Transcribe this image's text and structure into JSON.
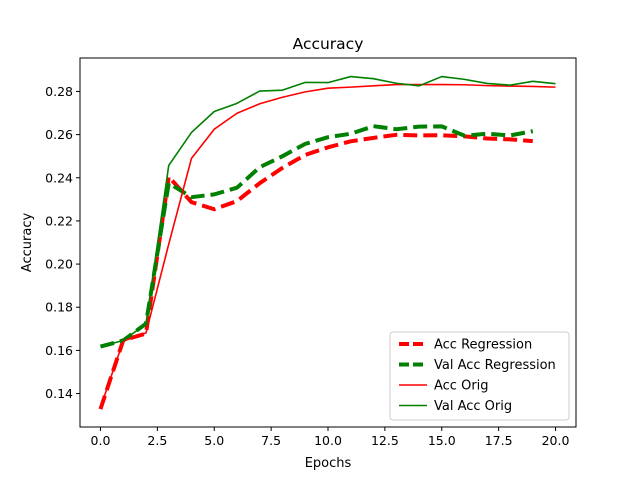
{
  "chart_data": {
    "type": "line",
    "title": "Accuracy",
    "xlabel": "Epochs",
    "ylabel": "Accuracy",
    "xlim": [
      -0.9,
      20.9
    ],
    "ylim": [
      0.1245,
      0.2955
    ],
    "x_ticks": [
      0.0,
      2.5,
      5.0,
      7.5,
      10.0,
      12.5,
      15.0,
      17.5,
      20.0
    ],
    "x_tick_labels": [
      "0.0",
      "2.5",
      "5.0",
      "7.5",
      "10.0",
      "12.5",
      "15.0",
      "17.5",
      "20.0"
    ],
    "y_ticks": [
      0.14,
      0.16,
      0.18,
      0.2,
      0.22,
      0.24,
      0.26,
      0.28
    ],
    "y_tick_labels": [
      "0.14",
      "0.16",
      "0.18",
      "0.20",
      "0.22",
      "0.24",
      "0.26",
      "0.28"
    ],
    "grid": false,
    "legend_position": "lower-right",
    "series": [
      {
        "name": "Acc Regression",
        "color": "#ff0000",
        "style": "dashed",
        "width": 4,
        "x": [
          0,
          1,
          2,
          3,
          4,
          5,
          6,
          7,
          8,
          9,
          10,
          11,
          12,
          13,
          14,
          15,
          16,
          17,
          18,
          19
        ],
        "y": [
          0.1328,
          0.1647,
          0.1678,
          0.2405,
          0.2287,
          0.2254,
          0.2292,
          0.2375,
          0.2446,
          0.2506,
          0.2541,
          0.2569,
          0.2585,
          0.2599,
          0.2596,
          0.2597,
          0.2592,
          0.2582,
          0.2578,
          0.257
        ]
      },
      {
        "name": "Val Acc Regression",
        "color": "#008000",
        "style": "dashed",
        "width": 4,
        "x": [
          0,
          1,
          2,
          3,
          4,
          5,
          6,
          7,
          8,
          9,
          10,
          11,
          12,
          13,
          14,
          15,
          16,
          17,
          18,
          19
        ],
        "y": [
          0.1618,
          0.1646,
          0.1724,
          0.2375,
          0.231,
          0.2323,
          0.2354,
          0.2449,
          0.25,
          0.2557,
          0.2588,
          0.2604,
          0.2639,
          0.2625,
          0.2637,
          0.2638,
          0.2595,
          0.2604,
          0.2596,
          0.2616
        ]
      },
      {
        "name": "Acc Orig",
        "color": "#ff0000",
        "style": "solid",
        "width": 1.6,
        "x": [
          0,
          1,
          2,
          3,
          4,
          5,
          6,
          7,
          8,
          9,
          10,
          11,
          12,
          13,
          14,
          15,
          16,
          17,
          18,
          19,
          20
        ],
        "y": [
          0.1335,
          0.1643,
          0.1681,
          0.2092,
          0.249,
          0.2625,
          0.2699,
          0.2743,
          0.2773,
          0.2798,
          0.2815,
          0.282,
          0.2826,
          0.2832,
          0.2832,
          0.2832,
          0.2831,
          0.2827,
          0.2825,
          0.2823,
          0.282
        ]
      },
      {
        "name": "Val Acc Orig",
        "color": "#008000",
        "style": "solid",
        "width": 1.6,
        "x": [
          0,
          1,
          2,
          3,
          4,
          5,
          6,
          7,
          8,
          9,
          10,
          11,
          12,
          13,
          14,
          15,
          16,
          17,
          18,
          19,
          20
        ],
        "y": [
          0.1618,
          0.1646,
          0.1723,
          0.2457,
          0.261,
          0.2707,
          0.2745,
          0.2802,
          0.2806,
          0.2842,
          0.2841,
          0.2869,
          0.2859,
          0.2838,
          0.2826,
          0.2869,
          0.2856,
          0.2837,
          0.2829,
          0.2847,
          0.2836
        ]
      }
    ]
  }
}
